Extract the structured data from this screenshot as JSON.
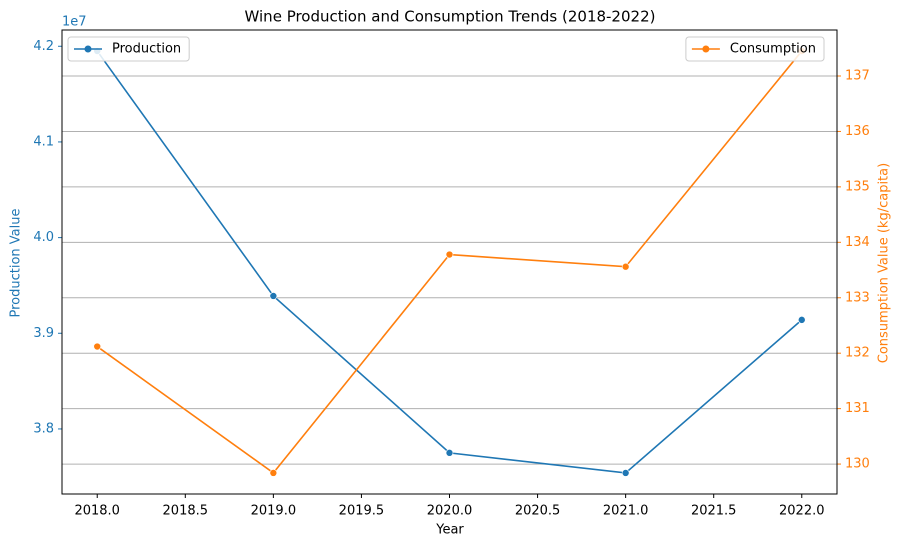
{
  "chart_data": {
    "type": "line",
    "title": "Wine Production and Consumption Trends (2018-2022)",
    "x_label": "Year",
    "y_label": "Production Value",
    "y2_label": "Consumption Value (kg/capita)",
    "y_offset_label": "1e7",
    "x": [
      2018,
      2019,
      2020,
      2021,
      2022
    ],
    "xlim": [
      2017.8,
      2022.2
    ],
    "xticks": [
      {
        "value": 2018,
        "label": "2018.0"
      },
      {
        "value": 2018.5,
        "label": "2018.5"
      },
      {
        "value": 2019,
        "label": "2019.0"
      },
      {
        "value": 2019.5,
        "label": "2019.5"
      },
      {
        "value": 2020,
        "label": "2020.0"
      },
      {
        "value": 2020.5,
        "label": "2020.5"
      },
      {
        "value": 2021,
        "label": "2021.0"
      },
      {
        "value": 2021.5,
        "label": "2021.5"
      },
      {
        "value": 2022,
        "label": "2022.0"
      }
    ],
    "ylim": [
      37320000,
      42170000
    ],
    "yticks": [
      {
        "value": 38000000,
        "label": "3.8"
      },
      {
        "value": 39000000,
        "label": "3.9"
      },
      {
        "value": 40000000,
        "label": "4.0"
      },
      {
        "value": 41000000,
        "label": "4.1"
      },
      {
        "value": 42000000,
        "label": "4.2"
      }
    ],
    "y2lim": [
      129.46,
      137.83
    ],
    "y2ticks": [
      130,
      131,
      132,
      133,
      134,
      135,
      136,
      137
    ],
    "grid": "y2",
    "series": [
      {
        "name": "Production",
        "color": "#1f77b4",
        "legend": "upper left",
        "values": [
          41950000,
          39390000,
          37750000,
          37540000,
          39140000
        ]
      },
      {
        "name": "Consumption",
        "color": "#ff7f0e",
        "legend": "upper right",
        "axis": "y2",
        "values": [
          132.12,
          129.84,
          133.78,
          133.56,
          137.45
        ]
      }
    ]
  }
}
